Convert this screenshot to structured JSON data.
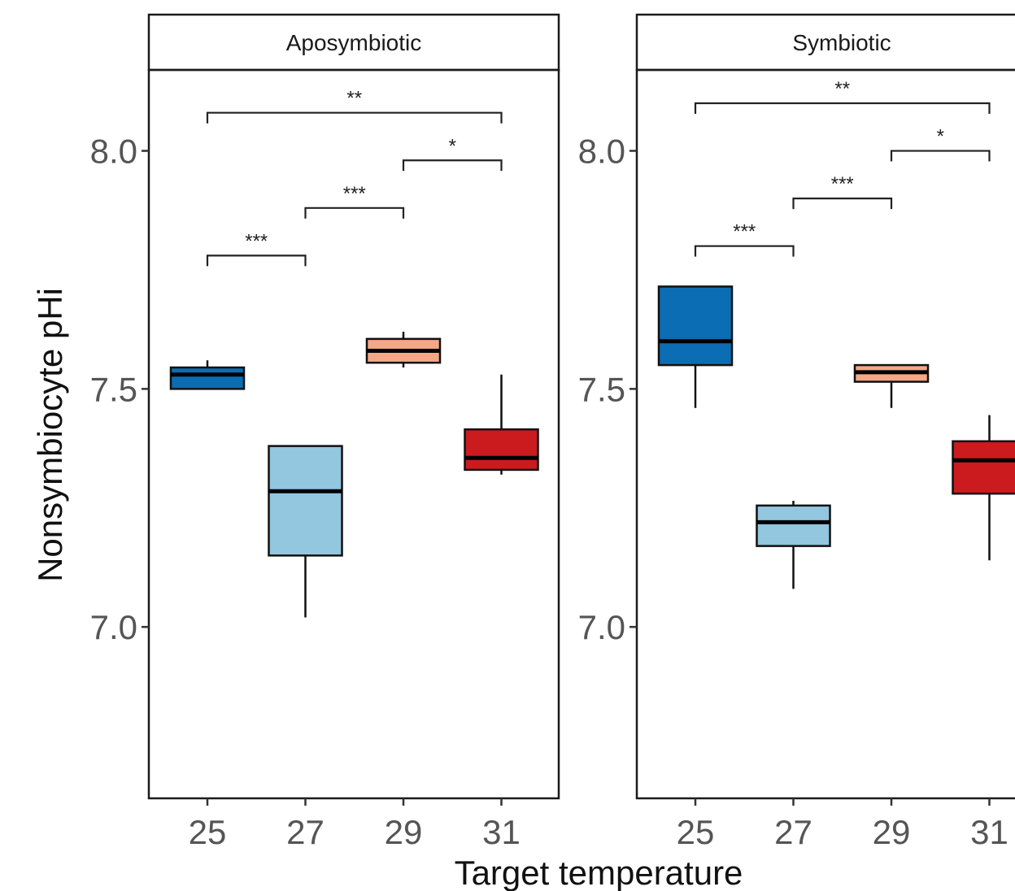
{
  "chart_data": {
    "type": "boxplot",
    "xlabel": "Target temperature",
    "ylabel": "Nonsymbiocyte pHi",
    "ylim": [
      6.64,
      8.17
    ],
    "yticks": [
      7.0,
      7.5,
      8.0
    ],
    "ytick_labels": [
      "7.0",
      "7.5",
      "8.0"
    ],
    "categories": [
      "25",
      "27",
      "29",
      "31"
    ],
    "colors": [
      "#0b6db3",
      "#93c6df",
      "#f5a886",
      "#cb1b1e"
    ],
    "panels": [
      {
        "title": "Aposymbiotic",
        "boxes": [
          {
            "category": "25",
            "whisker_low": 7.5,
            "q1": 7.5,
            "median": 7.53,
            "q3": 7.545,
            "whisker_high": 7.56
          },
          {
            "category": "27",
            "whisker_low": 7.02,
            "q1": 7.15,
            "median": 7.285,
            "q3": 7.38,
            "whisker_high": 7.38
          },
          {
            "category": "29",
            "whisker_low": 7.545,
            "q1": 7.555,
            "median": 7.58,
            "q3": 7.605,
            "whisker_high": 7.62
          },
          {
            "category": "31",
            "whisker_low": 7.32,
            "q1": 7.33,
            "median": 7.355,
            "q3": 7.415,
            "whisker_high": 7.53
          }
        ],
        "comparisons": [
          {
            "from": "25",
            "to": "27",
            "y": 7.78,
            "label": "***"
          },
          {
            "from": "27",
            "to": "29",
            "y": 7.88,
            "label": "***"
          },
          {
            "from": "29",
            "to": "31",
            "y": 7.98,
            "label": "*"
          },
          {
            "from": "25",
            "to": "31",
            "y": 8.08,
            "label": "**"
          }
        ]
      },
      {
        "title": "Symbiotic",
        "boxes": [
          {
            "category": "25",
            "whisker_low": 7.46,
            "q1": 7.55,
            "median": 7.6,
            "q3": 7.715,
            "whisker_high": 7.715
          },
          {
            "category": "27",
            "whisker_low": 7.08,
            "q1": 7.17,
            "median": 7.22,
            "q3": 7.255,
            "whisker_high": 7.265
          },
          {
            "category": "29",
            "whisker_low": 7.46,
            "q1": 7.515,
            "median": 7.535,
            "q3": 7.55,
            "whisker_high": 7.55
          },
          {
            "category": "31",
            "whisker_low": 7.14,
            "q1": 7.28,
            "median": 7.35,
            "q3": 7.39,
            "whisker_high": 7.445
          }
        ],
        "comparisons": [
          {
            "from": "25",
            "to": "27",
            "y": 7.8,
            "label": "***"
          },
          {
            "from": "27",
            "to": "29",
            "y": 7.9,
            "label": "***"
          },
          {
            "from": "29",
            "to": "31",
            "y": 8.0,
            "label": "*"
          },
          {
            "from": "25",
            "to": "31",
            "y": 8.1,
            "label": "**"
          }
        ]
      }
    ]
  }
}
